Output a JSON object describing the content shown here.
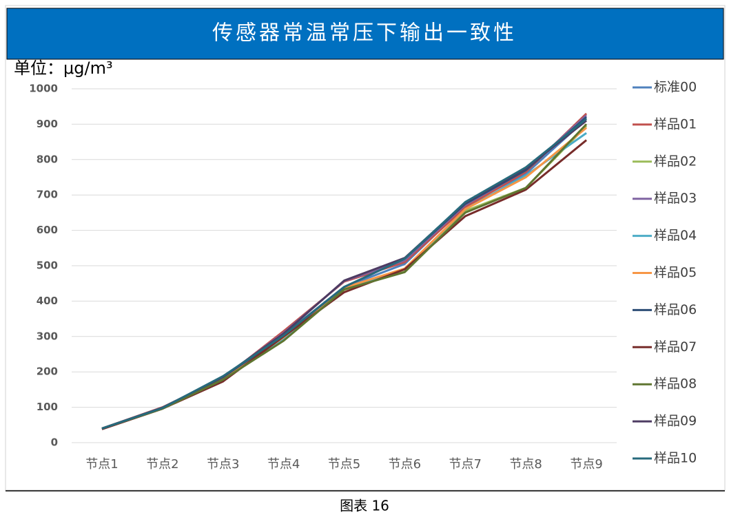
{
  "chart_data": {
    "type": "line",
    "title": "传感器常温常压下输出一致性",
    "unit_label": "单位：μg/m³",
    "caption": "图表 16",
    "categories": [
      "节点1",
      "节点2",
      "节点3",
      "节点4",
      "节点5",
      "节点6",
      "节点7",
      "节点8",
      "节点9"
    ],
    "ylim": [
      0,
      1000
    ],
    "yticks": [
      0,
      100,
      200,
      300,
      400,
      500,
      600,
      700,
      800,
      900,
      1000
    ],
    "grid": true,
    "legend": "right",
    "series": [
      {
        "name": "标准00",
        "color": "#4f81bd",
        "values": [
          40,
          98,
          183,
          305,
          440,
          505,
          670,
          760,
          915
        ]
      },
      {
        "name": "样品01",
        "color": "#c0504d",
        "values": [
          40,
          100,
          182,
          315,
          455,
          510,
          665,
          765,
          930
        ]
      },
      {
        "name": "样品02",
        "color": "#9bbb59",
        "values": [
          40,
          97,
          180,
          292,
          432,
          483,
          655,
          720,
          895
        ]
      },
      {
        "name": "样品03",
        "color": "#8064a2",
        "values": [
          40,
          99,
          185,
          310,
          457,
          515,
          672,
          770,
          925
        ]
      },
      {
        "name": "样品04",
        "color": "#4bacc6",
        "values": [
          40,
          97,
          180,
          295,
          435,
          490,
          660,
          755,
          875
        ]
      },
      {
        "name": "样品05",
        "color": "#f79646",
        "values": [
          40,
          97,
          180,
          298,
          438,
          492,
          660,
          750,
          890
        ]
      },
      {
        "name": "样品06",
        "color": "#2c4d75",
        "values": [
          40,
          98,
          185,
          302,
          440,
          520,
          675,
          770,
          920
        ]
      },
      {
        "name": "样品07",
        "color": "#772c2a",
        "values": [
          38,
          96,
          173,
          300,
          425,
          490,
          640,
          715,
          855
        ]
      },
      {
        "name": "样品08",
        "color": "#5f7530",
        "values": [
          40,
          96,
          178,
          288,
          433,
          482,
          650,
          720,
          900
        ]
      },
      {
        "name": "样品09",
        "color": "#4d3b62",
        "values": [
          40,
          99,
          186,
          308,
          458,
          522,
          678,
          775,
          910
        ]
      },
      {
        "name": "样品10",
        "color": "#276a7c",
        "values": [
          40,
          98,
          188,
          303,
          440,
          520,
          680,
          778,
          915
        ]
      }
    ]
  }
}
